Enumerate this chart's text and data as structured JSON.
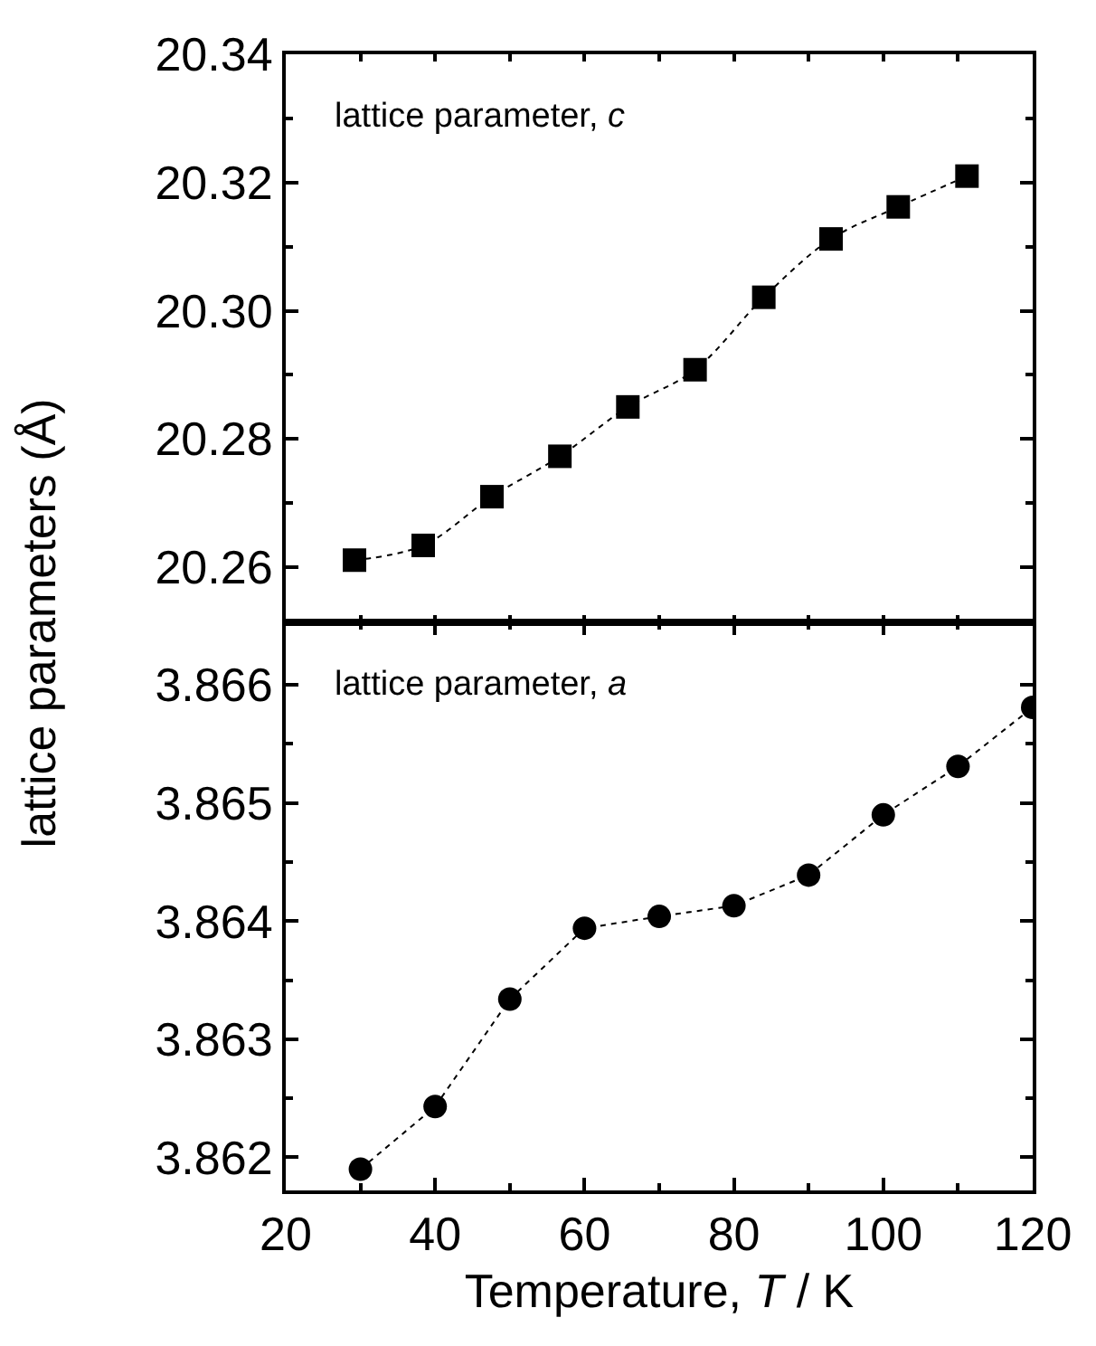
{
  "chart_data": [
    {
      "type": "line",
      "ylabel": "lattice parameters (Å)",
      "annotations": [
        "lattice parameter, c"
      ],
      "x": [
        29.2,
        38.4,
        47.6,
        56.7,
        65.8,
        74.8,
        84.0,
        93.0,
        102.0,
        111.2
      ],
      "series": [
        {
          "color": "#000000",
          "values": [
            20.2611,
            20.2634,
            20.271,
            20.2773,
            20.285,
            20.2908,
            20.3021,
            20.3112,
            20.3162,
            20.321
          ]
        }
      ],
      "xlim": [
        20,
        120
      ],
      "xticks": [
        {
          "value": 20,
          "label": null
        },
        {
          "value": 40,
          "label": null
        },
        {
          "value": 60,
          "label": null
        },
        {
          "value": 80,
          "label": null
        },
        {
          "value": 100,
          "label": null
        },
        {
          "value": 120,
          "label": null
        }
      ],
      "ylim": [
        20.2514,
        20.34
      ],
      "yticks": [
        20.26,
        20.28,
        {
          "value": 20.3,
          "label": "20.30"
        },
        20.32,
        20.34
      ],
      "tick_labels": "y",
      "marker": "square",
      "line_style": "dotted"
    },
    {
      "type": "line",
      "xlabel": "Temperature, T / K",
      "annotations": [
        "lattice parameter, a"
      ],
      "x": [
        30,
        40,
        50,
        60,
        70,
        80,
        90,
        100,
        110,
        120
      ],
      "series": [
        {
          "color": "#000000",
          "values": [
            3.8619,
            3.86243,
            3.86334,
            3.86394,
            3.86404,
            3.86413,
            3.86439,
            3.8649,
            3.86531,
            3.86581
          ]
        }
      ],
      "xlim": [
        20,
        120
      ],
      "xticks": [
        20,
        40,
        60,
        80,
        100,
        120
      ],
      "ylim": [
        3.86172,
        3.86653
      ],
      "yticks": [
        3.862,
        3.863,
        3.864,
        3.865,
        3.866
      ],
      "marker": "circle",
      "line_style": "dotted"
    }
  ]
}
